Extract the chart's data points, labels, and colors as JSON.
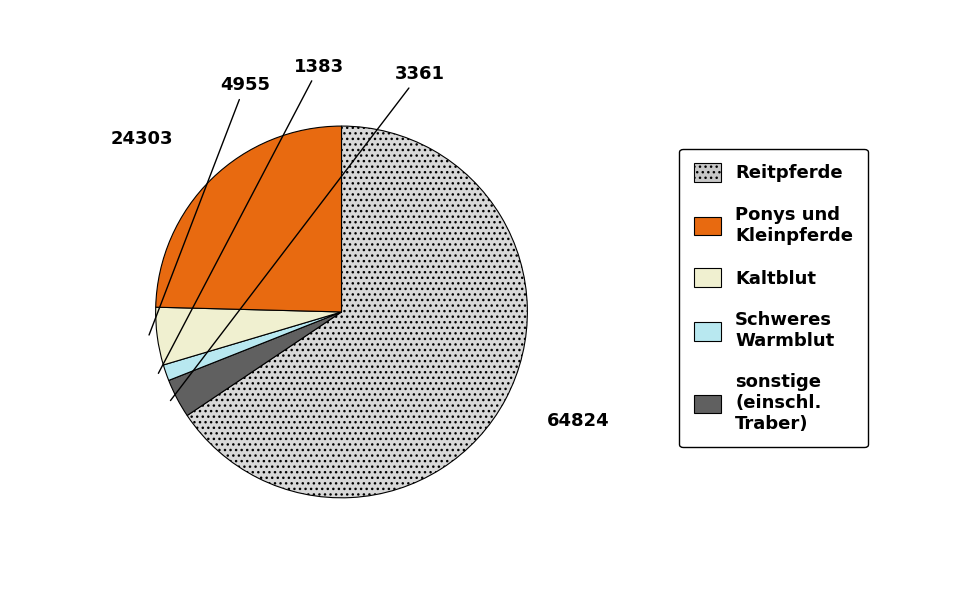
{
  "wedge_values": [
    64824,
    3361,
    1383,
    4955,
    24303
  ],
  "wedge_colors": [
    "#C8C8C8",
    "#606060",
    "#B8E8F0",
    "#F0F0D0",
    "#E86A10"
  ],
  "legend_colors": [
    "#C8C8C8",
    "#E86A10",
    "#F0F0D0",
    "#B8E8F0",
    "#606060"
  ],
  "legend_labels": [
    "Reitpferde",
    "Ponys und\nKleinpferde",
    "Kaltblut",
    "Schweres\nWarmblut",
    "sonstige\n(einschl.\nTraber)"
  ],
  "label_values": [
    "64824",
    "3361",
    "1383",
    "4955",
    "24303"
  ],
  "figsize": [
    9.62,
    5.96
  ],
  "dpi": 100,
  "background_color": "#ffffff",
  "text_fontsize": 13,
  "legend_fontsize": 13
}
